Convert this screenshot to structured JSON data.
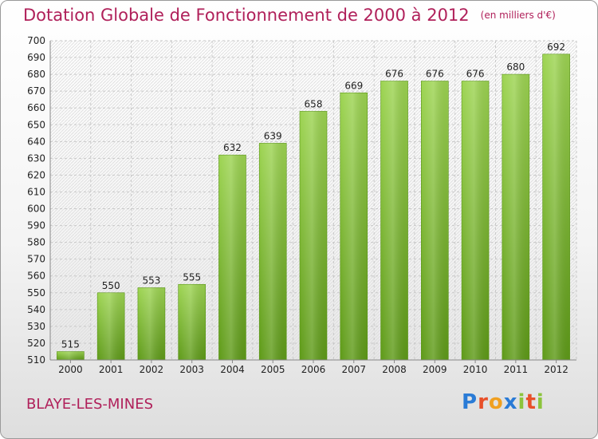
{
  "title": "Dotation Globale de Fonctionnement de 2000 à 2012",
  "subtitle": "(en milliers d'€)",
  "commune": "BLAYE-LES-MINES",
  "logo": {
    "text": "Proxiti",
    "letters": [
      {
        "char": "P",
        "color": "#2a7bd6"
      },
      {
        "char": "r",
        "color": "#e8502a"
      },
      {
        "char": "o",
        "color": "#f0a020"
      },
      {
        "char": "x",
        "color": "#2a7bd6"
      },
      {
        "char": "i",
        "color": "#8cc43c"
      },
      {
        "char": "t",
        "color": "#e8502a"
      },
      {
        "char": "i",
        "color": "#8cc43c"
      }
    ]
  },
  "chart_data": {
    "type": "bar",
    "categories": [
      "2000",
      "2001",
      "2002",
      "2003",
      "2004",
      "2005",
      "2006",
      "2007",
      "2008",
      "2009",
      "2010",
      "2011",
      "2012"
    ],
    "values": [
      515,
      550,
      553,
      555,
      632,
      639,
      658,
      669,
      676,
      676,
      676,
      680,
      692
    ],
    "ylim": [
      510,
      700
    ],
    "yticks": [
      510,
      520,
      530,
      540,
      550,
      560,
      570,
      580,
      590,
      600,
      610,
      620,
      630,
      640,
      650,
      660,
      670,
      680,
      690,
      700
    ],
    "grid": true,
    "bar_color": "#7fc234"
  }
}
